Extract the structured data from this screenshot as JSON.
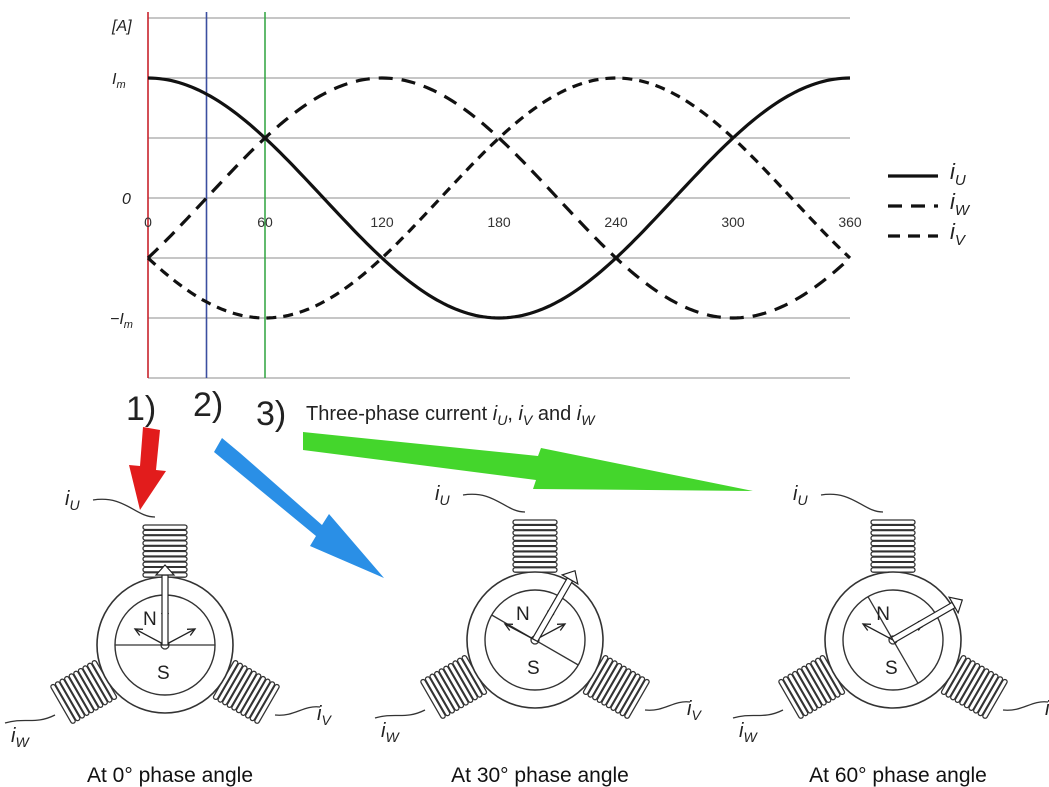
{
  "chart_data": {
    "type": "line",
    "x_ticks": [
      "0",
      "60",
      "120",
      "180",
      "240",
      "300",
      "360"
    ],
    "y_unit_label": "[A]",
    "y_ticks": [
      "I",
      "0",
      "−I"
    ],
    "y_tick_subscripts": [
      "m",
      "",
      "m"
    ],
    "xlim": [
      0,
      360
    ],
    "grid": true,
    "legend_position": "right",
    "series": [
      {
        "name": "i",
        "subscript": "U",
        "style": "solid",
        "phase_deg": 0,
        "amplitude": 1
      },
      {
        "name": "i",
        "subscript": "W",
        "style": "dashed",
        "phase_deg": 120,
        "amplitude": 1
      },
      {
        "name": "i",
        "subscript": "V",
        "style": "dashed",
        "phase_deg": 240,
        "amplitude": 1
      }
    ],
    "markers": [
      {
        "x": 0,
        "color": "#c8232c"
      },
      {
        "x": 30,
        "color": "#3b4ea0"
      },
      {
        "x": 60,
        "color": "#3aa84a"
      }
    ]
  },
  "steps": [
    {
      "number": "1)",
      "color": "#e02020"
    },
    {
      "number": "2)",
      "color": "#4a5db0"
    },
    {
      "number": "3)",
      "color": "#33cc44"
    }
  ],
  "title": {
    "prefix": "Three-phase current ",
    "i1": "i",
    "s1": "U",
    "sep1": ", ",
    "i2": "i",
    "s2": "V",
    "sep2": " and ",
    "i3": "i",
    "s3": "W"
  },
  "motors": [
    {
      "caption": "At 0° phase angle",
      "rotor_angle_deg": 0,
      "north": "N",
      "south": "S",
      "coil_labels": {
        "u": "i",
        "us": "U",
        "v": "i",
        "vs": "V",
        "w": "i",
        "ws": "W"
      }
    },
    {
      "caption": "At 30° phase angle",
      "rotor_angle_deg": 30,
      "north": "N",
      "south": "S",
      "coil_labels": {
        "u": "i",
        "us": "U",
        "v": "i",
        "vs": "V",
        "w": "i",
        "ws": "W"
      }
    },
    {
      "caption": "At 60° phase angle",
      "rotor_angle_deg": 60,
      "north": "N",
      "south": "S",
      "coil_labels": {
        "u": "i",
        "us": "U",
        "v": "i",
        "vs": "V",
        "w": "i",
        "ws": "W"
      }
    }
  ],
  "colors": {
    "arrow_red": "#e21c1c",
    "arrow_blue": "#2a8fe6",
    "arrow_green": "#44d62c"
  }
}
